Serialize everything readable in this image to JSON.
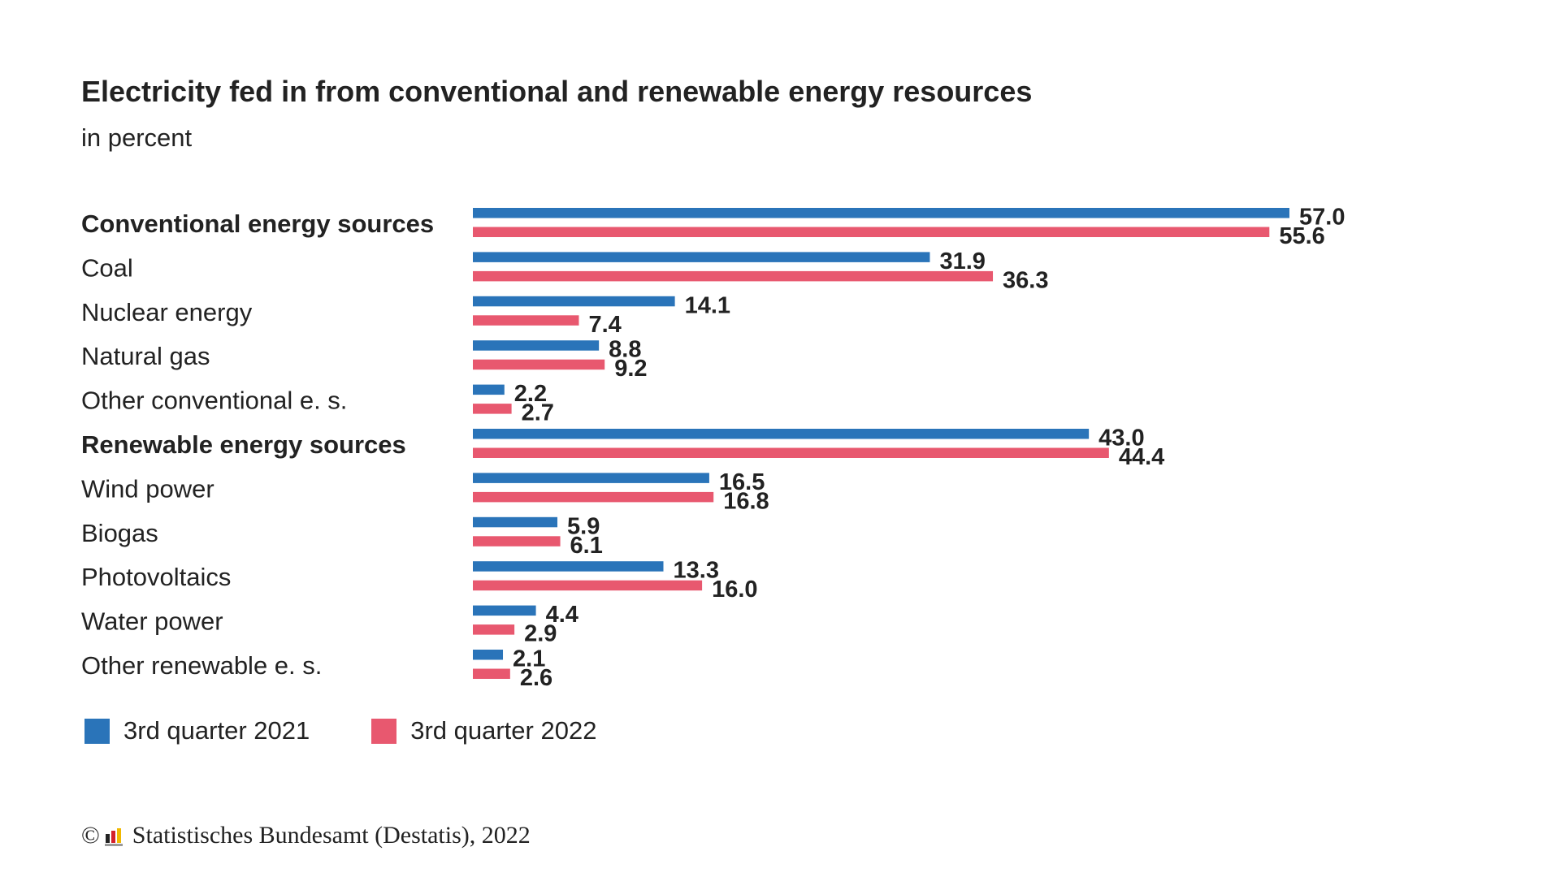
{
  "chart_data": {
    "type": "bar",
    "orientation": "horizontal",
    "title": "Electricity fed in from conventional and renewable energy resources",
    "subtitle": "in percent",
    "categories": [
      "Conventional energy sources",
      "Coal",
      "Nuclear energy",
      "Natural gas",
      "Other conventional e. s.",
      "Renewable energy sources",
      "Wind power",
      "Biogas",
      "Photovoltaics",
      "Water power",
      "Other renewable e. s."
    ],
    "bold_categories": [
      "Conventional energy sources",
      "Renewable energy sources"
    ],
    "series": [
      {
        "name": "3rd quarter 2021",
        "color": "#2a74b9",
        "values": [
          57.0,
          31.9,
          14.1,
          8.8,
          2.2,
          43.0,
          16.5,
          5.9,
          13.3,
          4.4,
          2.1
        ]
      },
      {
        "name": "3rd quarter 2022",
        "color": "#e8586f",
        "values": [
          55.6,
          36.3,
          7.4,
          9.2,
          2.7,
          44.4,
          16.8,
          6.1,
          16.0,
          2.9,
          2.6
        ]
      }
    ],
    "value_labels": [
      [
        "57.0",
        "31.9",
        "14.1",
        "8.8",
        "2.2",
        "43.0",
        "16.5",
        "5.9",
        "13.3",
        "4.4",
        "2.1"
      ],
      [
        "55.6",
        "36.3",
        "7.4",
        "9.2",
        "2.7",
        "44.4",
        "16.8",
        "6.1",
        "16.0",
        "2.9",
        "2.6"
      ]
    ],
    "xlim": [
      0,
      60
    ],
    "grid": false,
    "legend_position": "bottom-left"
  },
  "footer": {
    "copyright": "©",
    "source": "Statistisches Bundesamt (Destatis), 2022"
  }
}
